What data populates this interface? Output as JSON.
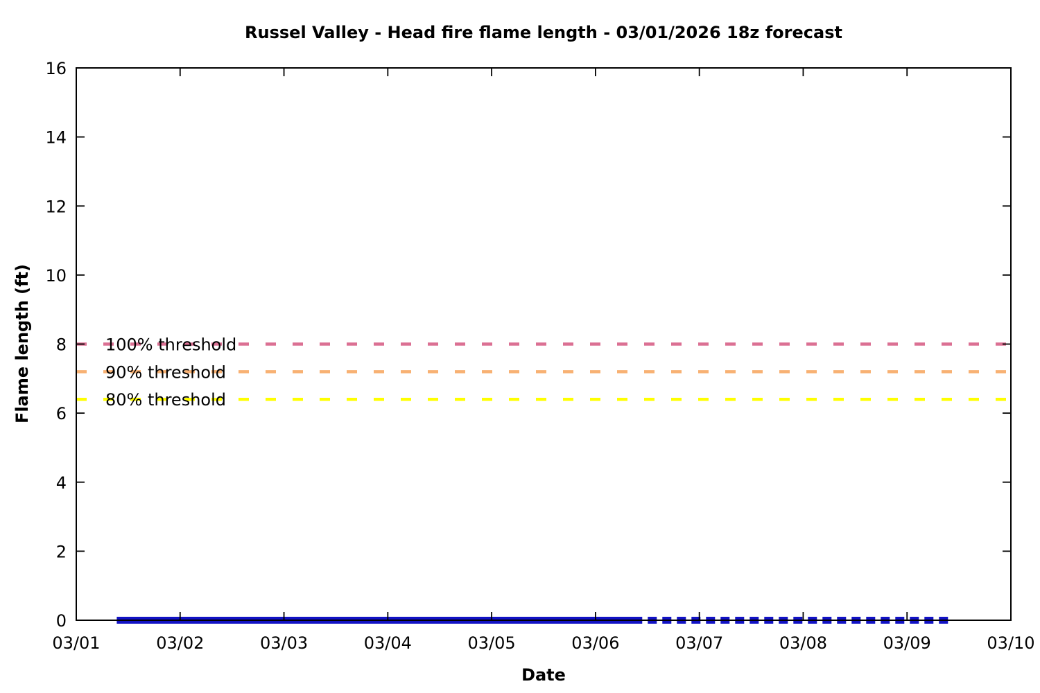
{
  "chart_data": {
    "type": "line",
    "title": "Russel Valley - Head fire flame length - 03/01/2026 18z forecast",
    "xlabel": "Date",
    "ylabel": "Flame length (ft)",
    "x_tick_labels": [
      "03/01",
      "03/02",
      "03/03",
      "03/04",
      "03/05",
      "03/06",
      "03/07",
      "03/08",
      "03/09",
      "03/10"
    ],
    "y_tick_labels": [
      "0",
      "2",
      "4",
      "6",
      "8",
      "10",
      "12",
      "14",
      "16"
    ],
    "ylim": [
      0,
      16
    ],
    "y_tick_step": 2,
    "grid": false,
    "legend_position": "none",
    "axis_color": "#000000",
    "background_color": "#ffffff",
    "thresholds": [
      {
        "id": "threshold-100",
        "label": "100% threshold",
        "value": 8.0,
        "color": "#db7093",
        "style": "dashed"
      },
      {
        "id": "threshold-90",
        "label": "90% threshold",
        "value": 7.2,
        "color": "#f8b173",
        "style": "dashed"
      },
      {
        "id": "threshold-80",
        "label": "80% threshold",
        "value": 6.4,
        "color": "#ffff00",
        "style": "dashed"
      }
    ],
    "series": [
      {
        "name": "flame-length-solid-segment",
        "style": "solid",
        "color": "#1212c4",
        "value_ft": 0,
        "start_day": 0.39,
        "end_day": 5.45
      },
      {
        "name": "flame-length-dashed-segment",
        "style": "dashed",
        "color": "#1212c4",
        "value_ft": 0,
        "start_day": 5.45,
        "end_day": 8.44
      }
    ]
  }
}
